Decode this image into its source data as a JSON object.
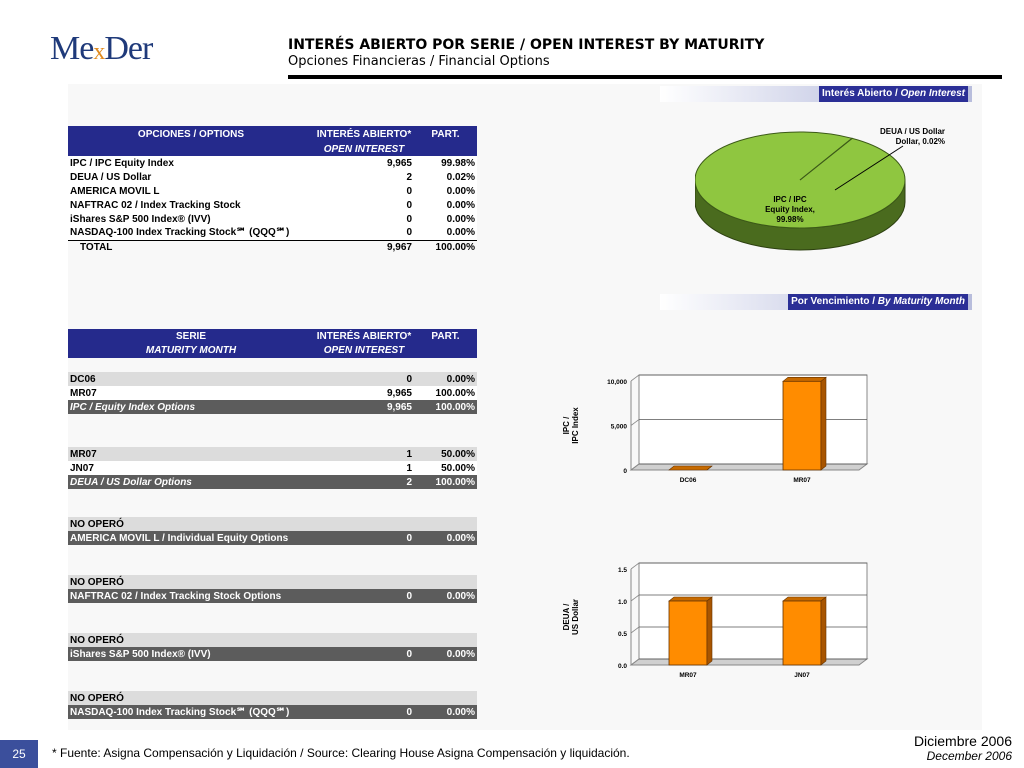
{
  "header": {
    "logo_text_1": "Me",
    "logo_text_x": "x",
    "logo_text_2": "Der",
    "title": "INTERÉS ABIERTO POR SERIE / OPEN INTEREST BY MATURITY",
    "subtitle": "Opciones Financieras / Financial Options"
  },
  "band_open_interest": {
    "es": "Interés Abierto / ",
    "en": "Open Interest"
  },
  "band_maturity": {
    "es": "Por Vencimiento / ",
    "en": "By Maturity Month"
  },
  "table1": {
    "headers": [
      "OPCIONES / OPTIONS",
      "INTERÉS ABIERTO*",
      "PART."
    ],
    "subheader": "OPEN INTEREST",
    "rows": [
      [
        "IPC / IPC Equity Index",
        "9,965",
        "99.98%"
      ],
      [
        "DEUA / US Dollar",
        "2",
        "0.02%"
      ],
      [
        "AMERICA MOVIL L",
        "0",
        "0.00%"
      ],
      [
        "NAFTRAC 02 / Index Tracking Stock",
        "0",
        "0.00%"
      ],
      [
        "iShares S&P 500 Index® (IVV)",
        "0",
        "0.00%"
      ],
      [
        "NASDAQ-100 Index Tracking Stock℠ (QQQ℠)",
        "0",
        "0.00%"
      ]
    ],
    "total": [
      "TOTAL",
      "9,967",
      "100.00%"
    ]
  },
  "table2": {
    "headers": [
      "SERIE",
      "INTERÉS ABIERTO*",
      "PART."
    ],
    "subheaders": [
      "MATURITY MONTH",
      "OPEN INTEREST"
    ],
    "g1": [
      [
        "DC06",
        "0",
        "0.00%"
      ],
      [
        "MR07",
        "9,965",
        "100.00%"
      ]
    ],
    "g1_total": [
      "IPC / Equity Index Options",
      "9,965",
      "100.00%"
    ],
    "g2": [
      [
        "MR07",
        "1",
        "50.00%"
      ],
      [
        "JN07",
        "1",
        "50.00%"
      ]
    ],
    "g2_total": [
      "DEUA / US Dollar Options",
      "2",
      "100.00%"
    ],
    "no_opero": "NO OPERÓ",
    "g3_total": [
      "AMERICA MOVIL L / Individual Equity Options",
      "0",
      "0.00%"
    ],
    "g4_total": [
      "NAFTRAC 02 / Index Tracking Stock Options",
      "0",
      "0.00%"
    ],
    "g5_total": [
      "iShares S&P 500 Index® (IVV)",
      "0",
      "0.00%"
    ],
    "g6_total": [
      "NASDAQ-100 Index Tracking Stock℠ (QQQ℠)",
      "0",
      "0.00%"
    ]
  },
  "footer": {
    "page": "25",
    "note": "* Fuente: Asigna Compensación y Liquidación / Source: Clearing House Asigna Compensación y liquidación.",
    "date_es": "Diciembre 2006",
    "date_en": "December 2006"
  },
  "colors": {
    "bar": "#ff8c00",
    "pie": "#8fc640",
    "pie_side": "#4a6b1e",
    "header_blue": "#252a8c"
  },
  "chart_data": [
    {
      "type": "pie",
      "categories": [
        "IPC / IPC Equity Index, 99.98%",
        "DEUA / US Dollar, 0.02%"
      ],
      "values": [
        99.98,
        0.02
      ]
    },
    {
      "type": "bar",
      "categories": [
        "DC06",
        "MR07"
      ],
      "values": [
        0,
        9965
      ],
      "ylabel": "IPC / IPC Index",
      "ylim": [
        0,
        10000
      ],
      "yticks": [
        "0",
        "5,000",
        "10,000"
      ],
      "grid": true
    },
    {
      "type": "bar",
      "categories": [
        "MR07",
        "JN07"
      ],
      "values": [
        1,
        1
      ],
      "ylabel": "DEUA / US Dollar",
      "ylim": [
        0,
        1.5
      ],
      "yticks": [
        "0.0",
        "0.5",
        "1.0",
        "1.5"
      ],
      "grid": true
    }
  ]
}
